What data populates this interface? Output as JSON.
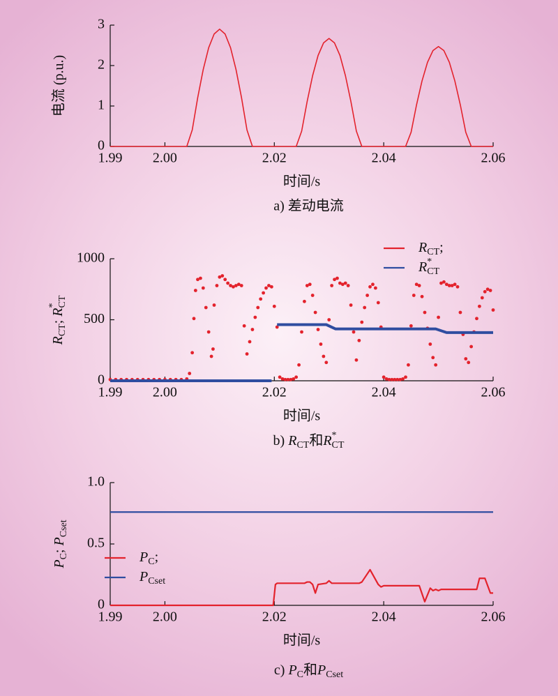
{
  "chart_data": [
    {
      "type": "line",
      "xlabel": "时间/s",
      "ylabel": "电流 (p.u.)",
      "caption": "a) 差动电流",
      "xlim": [
        1.99,
        2.06
      ],
      "xticks": [
        1.99,
        {
          "value": 2.0,
          "label": "2.00"
        },
        2.02,
        2.04,
        2.06
      ],
      "ylim": [
        0,
        3
      ],
      "yticks": [
        0,
        1,
        2,
        3
      ],
      "grid": false,
      "series": [
        {
          "color": "#e3222c",
          "x": [
            1.99,
            2.004,
            2.005,
            2.006,
            2.007,
            2.008,
            2.009,
            2.01,
            2.011,
            2.012,
            2.013,
            2.014,
            2.015,
            2.016,
            2.024,
            2.025,
            2.026,
            2.027,
            2.028,
            2.029,
            2.03,
            2.031,
            2.032,
            2.033,
            2.034,
            2.035,
            2.036,
            2.044,
            2.045,
            2.046,
            2.047,
            2.048,
            2.049,
            2.05,
            2.051,
            2.052,
            2.053,
            2.054,
            2.055,
            2.056,
            2.06
          ],
          "values": [
            0,
            0,
            0.41,
            1.21,
            1.9,
            2.44,
            2.78,
            2.9,
            2.78,
            2.44,
            1.9,
            1.21,
            0.41,
            0,
            0,
            0.38,
            1.11,
            1.75,
            2.25,
            2.56,
            2.67,
            2.56,
            2.25,
            1.75,
            1.11,
            0.38,
            0,
            0,
            0.35,
            1.03,
            1.62,
            2.08,
            2.37,
            2.47,
            2.37,
            2.08,
            1.62,
            1.03,
            0.35,
            0,
            0
          ]
        }
      ]
    },
    {
      "type": "line",
      "xlabel": "时间/s",
      "ylabel": [
        {
          "text": "R",
          "style": "i"
        },
        {
          "text": "CT",
          "style": "sub"
        },
        {
          "text": "; ",
          "style": "n"
        },
        {
          "text": "R",
          "style": "i"
        },
        {
          "text": "*",
          "style": "sup"
        },
        {
          "text": "CT",
          "style": "sub"
        }
      ],
      "caption": [
        {
          "text": "b) ",
          "style": "n"
        },
        {
          "text": "R",
          "style": "i"
        },
        {
          "text": "CT",
          "style": "sub"
        },
        {
          "text": "和",
          "style": "n"
        },
        {
          "text": "R",
          "style": "i"
        },
        {
          "text": "*",
          "style": "sup"
        },
        {
          "text": "CT",
          "style": "sub"
        }
      ],
      "xlim": [
        1.99,
        2.06
      ],
      "xticks": [
        1.99,
        {
          "value": 2.0,
          "label": "2.00"
        },
        2.02,
        2.04,
        2.06
      ],
      "ylim": [
        0,
        1000
      ],
      "yticks": [
        0,
        500,
        1000
      ],
      "grid": false,
      "legend": "upper right",
      "series": [
        {
          "name": [
            {
              "text": "R",
              "style": "i"
            },
            {
              "text": "CT",
              "style": "sub"
            },
            {
              "text": ";",
              "style": "n"
            }
          ],
          "type": "scatter",
          "color": "#e3222c",
          "x": [
            1.99,
            1.991,
            1.992,
            1.993,
            1.994,
            1.995,
            1.996,
            1.997,
            1.998,
            1.999,
            2.0,
            2.001,
            2.002,
            2.003,
            2.004,
            2.0045,
            2.005,
            2.0053,
            2.0056,
            2.006,
            2.0065,
            2.007,
            2.0075,
            2.008,
            2.0085,
            2.0088,
            2.009,
            2.0095,
            2.01,
            2.0105,
            2.011,
            2.0115,
            2.012,
            2.0125,
            2.013,
            2.0135,
            2.014,
            2.0145,
            2.015,
            2.0155,
            2.016,
            2.0165,
            2.017,
            2.0175,
            2.018,
            2.0185,
            2.019,
            2.0195,
            2.02,
            2.0205,
            2.021,
            2.0215,
            2.022,
            2.0225,
            2.023,
            2.0235,
            2.024,
            2.0245,
            2.025,
            2.0255,
            2.026,
            2.0265,
            2.027,
            2.0275,
            2.028,
            2.0285,
            2.029,
            2.0295,
            2.03,
            2.0305,
            2.031,
            2.0315,
            2.032,
            2.0325,
            2.033,
            2.0335,
            2.034,
            2.0345,
            2.035,
            2.0355,
            2.036,
            2.0365,
            2.037,
            2.0375,
            2.038,
            2.0385,
            2.039,
            2.0395,
            2.04,
            2.0405,
            2.041,
            2.0415,
            2.042,
            2.0425,
            2.043,
            2.0435,
            2.044,
            2.0445,
            2.045,
            2.0455,
            2.046,
            2.0465,
            2.047,
            2.0475,
            2.048,
            2.0485,
            2.049,
            2.0495,
            2.05,
            2.0505,
            2.051,
            2.0515,
            2.052,
            2.0525,
            2.053,
            2.0535,
            2.054,
            2.0545,
            2.055,
            2.0555,
            2.056,
            2.0565,
            2.057,
            2.0575,
            2.058,
            2.0585,
            2.059,
            2.0595,
            2.06
          ],
          "values": [
            10,
            10,
            10,
            10,
            10,
            10,
            10,
            10,
            10,
            10,
            10,
            10,
            10,
            10,
            15,
            60,
            230,
            510,
            740,
            830,
            840,
            760,
            600,
            400,
            200,
            260,
            620,
            780,
            850,
            860,
            830,
            800,
            780,
            770,
            780,
            790,
            780,
            450,
            220,
            320,
            420,
            520,
            600,
            670,
            720,
            760,
            780,
            770,
            610,
            440,
            30,
            15,
            10,
            10,
            10,
            15,
            30,
            130,
            400,
            650,
            780,
            790,
            700,
            560,
            420,
            300,
            200,
            150,
            500,
            780,
            830,
            840,
            800,
            790,
            800,
            780,
            620,
            400,
            170,
            330,
            480,
            600,
            700,
            770,
            790,
            760,
            640,
            440,
            30,
            15,
            10,
            10,
            10,
            10,
            10,
            15,
            30,
            130,
            450,
            700,
            790,
            780,
            690,
            560,
            430,
            300,
            190,
            130,
            520,
            800,
            810,
            790,
            780,
            780,
            790,
            770,
            560,
            380,
            180,
            150,
            280,
            400,
            510,
            610,
            680,
            730,
            750,
            740,
            580
          ]
        },
        {
          "name": [
            {
              "text": "R",
              "style": "i"
            },
            {
              "text": "*",
              "style": "sup"
            },
            {
              "text": "CT",
              "style": "sub"
            }
          ],
          "type": "line",
          "color": "#2f4da0",
          "x": [
            1.99,
            2.0195,
            2.02,
            2.0205,
            2.0295,
            2.0312,
            2.0495,
            2.0515,
            2.06
          ],
          "values": [
            0,
            0,
            null,
            460,
            460,
            425,
            425,
            395,
            395
          ]
        }
      ]
    },
    {
      "type": "line",
      "xlabel": "时间/s",
      "ylabel": [
        {
          "text": "P",
          "style": "i"
        },
        {
          "text": "C",
          "style": "sub"
        },
        {
          "text": "; ",
          "style": "n"
        },
        {
          "text": "P",
          "style": "i"
        },
        {
          "text": "Cset",
          "style": "sub"
        }
      ],
      "caption": [
        {
          "text": "c) ",
          "style": "n"
        },
        {
          "text": "P",
          "style": "i"
        },
        {
          "text": "C",
          "style": "sub"
        },
        {
          "text": "和",
          "style": "n"
        },
        {
          "text": "P",
          "style": "i"
        },
        {
          "text": "Cset",
          "style": "sub"
        }
      ],
      "xlim": [
        1.99,
        2.06
      ],
      "xticks": [
        1.99,
        {
          "value": 2.0,
          "label": "2.00"
        },
        2.02,
        2.04,
        2.06
      ],
      "ylim": [
        0,
        1
      ],
      "yticks": [
        0,
        0.5,
        {
          "value": 1,
          "label": "1.0"
        }
      ],
      "grid": false,
      "legend": "lower left",
      "series": [
        {
          "name": [
            {
              "text": "P",
              "style": "i"
            },
            {
              "text": "C",
              "style": "sub"
            },
            {
              "text": ";",
              "style": "n"
            }
          ],
          "type": "line",
          "color": "#e3222c",
          "x": [
            1.99,
            2.0198,
            2.0202,
            2.0205,
            2.0255,
            2.026,
            2.0265,
            2.027,
            2.0275,
            2.028,
            2.0295,
            2.03,
            2.0305,
            2.0355,
            2.036,
            2.0375,
            2.039,
            2.0395,
            2.04,
            2.0465,
            2.0475,
            2.0485,
            2.049,
            2.0495,
            2.05,
            2.0505,
            2.057,
            2.0575,
            2.0585,
            2.0595,
            2.06
          ],
          "values": [
            0,
            0,
            0.17,
            0.18,
            0.18,
            0.19,
            0.19,
            0.17,
            0.1,
            0.17,
            0.18,
            0.2,
            0.18,
            0.18,
            0.19,
            0.29,
            0.17,
            0.15,
            0.16,
            0.16,
            0.03,
            0.14,
            0.12,
            0.13,
            0.12,
            0.13,
            0.13,
            0.22,
            0.22,
            0.1,
            0.1
          ]
        },
        {
          "name": [
            {
              "text": "P",
              "style": "i"
            },
            {
              "text": "Cset",
              "style": "sub"
            }
          ],
          "type": "line",
          "color": "#2f4da0",
          "x": [
            1.99,
            2.06
          ],
          "values": [
            0.76,
            0.76
          ]
        }
      ]
    }
  ]
}
